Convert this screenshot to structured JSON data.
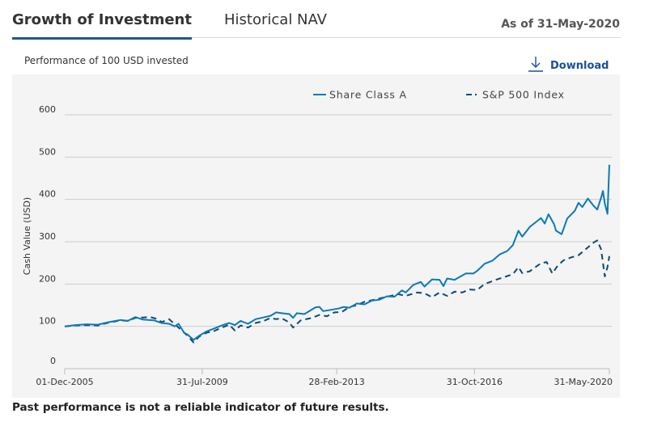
{
  "tabs": [
    {
      "label": "Growth of Investment",
      "active": true
    },
    {
      "label": "Historical NAV",
      "active": false
    }
  ],
  "as_of": "As of 31-May-2020",
  "subtitle": "Performance of 100 USD invested",
  "download": {
    "label": "Download",
    "icon": "download-arrow-icon"
  },
  "disclaimer": "Past performance is not a reliable indicator of future results.",
  "colors": {
    "share_class": "#0a7ab8",
    "index": "#0d4a78",
    "accent": "#1e5a8e",
    "link": "#1a4f99",
    "grid": "#cccccc",
    "panel": "#f4f4f4"
  },
  "chart_data": {
    "type": "line",
    "title": "Growth of Investment",
    "subtitle": "Performance of 100 USD invested",
    "xlabel": "",
    "ylabel": "Cash Value (USD)",
    "ylim": [
      0,
      600
    ],
    "yticks": [
      0,
      100,
      200,
      300,
      400,
      500,
      600
    ],
    "xlim": [
      2005.92,
      2020.42
    ],
    "xticks": [
      {
        "label": "01-Dec-2005",
        "t": 2005.92
      },
      {
        "label": "31-Jul-2009",
        "t": 2009.58
      },
      {
        "label": "28-Feb-2013",
        "t": 2013.16
      },
      {
        "label": "31-Oct-2016",
        "t": 2016.83
      },
      {
        "label": "31-May-2020",
        "t": 2020.42
      }
    ],
    "grid": true,
    "legend_position": "top",
    "series": [
      {
        "name": "Share Class A",
        "style": "solid",
        "points": [
          [
            2005.92,
            100
          ],
          [
            2006.2,
            103
          ],
          [
            2006.5,
            105
          ],
          [
            2006.8,
            104
          ],
          [
            2007.1,
            110
          ],
          [
            2007.4,
            115
          ],
          [
            2007.6,
            113
          ],
          [
            2007.8,
            122
          ],
          [
            2008.0,
            116
          ],
          [
            2008.3,
            114
          ],
          [
            2008.5,
            108
          ],
          [
            2008.7,
            106
          ],
          [
            2008.85,
            100
          ],
          [
            2008.95,
            106
          ],
          [
            2009.1,
            85
          ],
          [
            2009.2,
            80
          ],
          [
            2009.35,
            68
          ],
          [
            2009.5,
            78
          ],
          [
            2009.7,
            88
          ],
          [
            2009.9,
            95
          ],
          [
            2010.1,
            102
          ],
          [
            2010.3,
            108
          ],
          [
            2010.45,
            103
          ],
          [
            2010.6,
            113
          ],
          [
            2010.8,
            106
          ],
          [
            2011.0,
            117
          ],
          [
            2011.2,
            121
          ],
          [
            2011.4,
            125
          ],
          [
            2011.55,
            133
          ],
          [
            2011.7,
            131
          ],
          [
            2011.9,
            129
          ],
          [
            2012.0,
            120
          ],
          [
            2012.1,
            131
          ],
          [
            2012.3,
            129
          ],
          [
            2012.6,
            145
          ],
          [
            2012.7,
            146
          ],
          [
            2012.8,
            136
          ],
          [
            2013.0,
            139
          ],
          [
            2013.2,
            142
          ],
          [
            2013.35,
            146
          ],
          [
            2013.5,
            144
          ],
          [
            2013.7,
            154
          ],
          [
            2013.9,
            152
          ],
          [
            2014.1,
            161
          ],
          [
            2014.3,
            163
          ],
          [
            2014.5,
            171
          ],
          [
            2014.7,
            170
          ],
          [
            2014.9,
            185
          ],
          [
            2015.0,
            180
          ],
          [
            2015.2,
            198
          ],
          [
            2015.4,
            205
          ],
          [
            2015.5,
            194
          ],
          [
            2015.7,
            211
          ],
          [
            2015.9,
            210
          ],
          [
            2016.0,
            195
          ],
          [
            2016.1,
            213
          ],
          [
            2016.3,
            210
          ],
          [
            2016.4,
            215
          ],
          [
            2016.6,
            225
          ],
          [
            2016.8,
            225
          ],
          [
            2016.9,
            231
          ],
          [
            2017.1,
            248
          ],
          [
            2017.3,
            255
          ],
          [
            2017.5,
            270
          ],
          [
            2017.7,
            278
          ],
          [
            2017.85,
            292
          ],
          [
            2018.0,
            326
          ],
          [
            2018.1,
            312
          ],
          [
            2018.3,
            335
          ],
          [
            2018.5,
            349
          ],
          [
            2018.6,
            356
          ],
          [
            2018.7,
            343
          ],
          [
            2018.8,
            365
          ],
          [
            2018.95,
            341
          ],
          [
            2019.0,
            326
          ],
          [
            2019.15,
            318
          ],
          [
            2019.3,
            355
          ],
          [
            2019.5,
            373
          ],
          [
            2019.6,
            392
          ],
          [
            2019.7,
            382
          ],
          [
            2019.85,
            402
          ],
          [
            2020.0,
            385
          ],
          [
            2020.1,
            376
          ],
          [
            2020.2,
            404
          ],
          [
            2020.25,
            420
          ],
          [
            2020.3,
            390
          ],
          [
            2020.37,
            366
          ],
          [
            2020.42,
            482
          ]
        ]
      },
      {
        "name": "S&P 500 Index",
        "style": "dashed",
        "points": [
          [
            2005.92,
            100
          ],
          [
            2006.2,
            102
          ],
          [
            2006.5,
            103
          ],
          [
            2006.8,
            102
          ],
          [
            2007.1,
            109
          ],
          [
            2007.4,
            114
          ],
          [
            2007.6,
            113
          ],
          [
            2007.8,
            120
          ],
          [
            2008.0,
            121
          ],
          [
            2008.2,
            122
          ],
          [
            2008.4,
            117
          ],
          [
            2008.5,
            110
          ],
          [
            2008.7,
            117
          ],
          [
            2008.85,
            105
          ],
          [
            2009.0,
            93
          ],
          [
            2009.2,
            77
          ],
          [
            2009.35,
            62
          ],
          [
            2009.5,
            76
          ],
          [
            2009.7,
            85
          ],
          [
            2009.9,
            89
          ],
          [
            2010.1,
            97
          ],
          [
            2010.3,
            104
          ],
          [
            2010.45,
            90
          ],
          [
            2010.6,
            102
          ],
          [
            2010.8,
            97
          ],
          [
            2011.0,
            108
          ],
          [
            2011.2,
            112
          ],
          [
            2011.4,
            120
          ],
          [
            2011.55,
            117
          ],
          [
            2011.7,
            119
          ],
          [
            2011.9,
            109
          ],
          [
            2012.0,
            97
          ],
          [
            2012.2,
            114
          ],
          [
            2012.5,
            120
          ],
          [
            2012.7,
            127
          ],
          [
            2012.9,
            124
          ],
          [
            2013.1,
            133
          ],
          [
            2013.3,
            134
          ],
          [
            2013.5,
            146
          ],
          [
            2013.7,
            150
          ],
          [
            2013.9,
            158
          ],
          [
            2014.2,
            164
          ],
          [
            2014.5,
            170
          ],
          [
            2014.8,
            176
          ],
          [
            2015.0,
            172
          ],
          [
            2015.3,
            180
          ],
          [
            2015.5,
            178
          ],
          [
            2015.7,
            169
          ],
          [
            2015.9,
            180
          ],
          [
            2016.1,
            172
          ],
          [
            2016.3,
            182
          ],
          [
            2016.5,
            180
          ],
          [
            2016.7,
            187
          ],
          [
            2016.9,
            186
          ],
          [
            2017.1,
            200
          ],
          [
            2017.4,
            210
          ],
          [
            2017.6,
            216
          ],
          [
            2017.85,
            223
          ],
          [
            2018.0,
            240
          ],
          [
            2018.1,
            226
          ],
          [
            2018.3,
            230
          ],
          [
            2018.5,
            243
          ],
          [
            2018.6,
            249
          ],
          [
            2018.75,
            252
          ],
          [
            2018.9,
            225
          ],
          [
            2019.05,
            244
          ],
          [
            2019.2,
            256
          ],
          [
            2019.4,
            263
          ],
          [
            2019.6,
            268
          ],
          [
            2019.8,
            283
          ],
          [
            2020.0,
            298
          ],
          [
            2020.1,
            303
          ],
          [
            2020.2,
            282
          ],
          [
            2020.3,
            218
          ],
          [
            2020.37,
            240
          ],
          [
            2020.42,
            266
          ]
        ]
      }
    ]
  }
}
